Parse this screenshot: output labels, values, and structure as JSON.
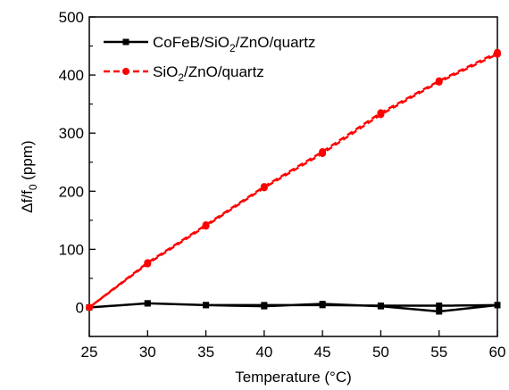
{
  "chart_data": {
    "type": "line",
    "xlabel": "Temperature (°C)",
    "ylabel": {
      "main": "Δf/f",
      "sub": "0",
      "rest": " (ppm)"
    },
    "xlim": [
      25,
      60
    ],
    "ylim": [
      -50,
      500
    ],
    "xticks": [
      25,
      30,
      35,
      40,
      45,
      50,
      55,
      60
    ],
    "yticks": [
      0,
      100,
      200,
      300,
      400,
      500
    ],
    "grid": false,
    "legend_position": "top-left",
    "series": [
      {
        "name": "CoFeB/SiO2/ZnO/quartz",
        "legend_parts": [
          [
            "CoFeB/SiO",
            ""
          ],
          [
            "2",
            "sub"
          ],
          [
            "/ZnO/quartz",
            ""
          ]
        ],
        "color": "#000000",
        "line_style": "solid",
        "marker": "square",
        "x": [
          25,
          30,
          35,
          40,
          45,
          50,
          55,
          60
        ],
        "y": [
          0,
          7,
          4,
          2,
          6,
          2,
          -7,
          4
        ],
        "return_x": [
          60,
          55,
          50,
          45,
          40,
          35,
          30
        ],
        "return_y": [
          4,
          3,
          3,
          4,
          4,
          4,
          7
        ]
      },
      {
        "name": "SiO2/ZnO/quartz",
        "legend_parts": [
          [
            "SiO",
            ""
          ],
          [
            "2",
            "sub"
          ],
          [
            "/ZnO/quartz",
            ""
          ]
        ],
        "color": "#ff0000",
        "line_style": "dashed",
        "marker": "circle",
        "x": [
          25,
          30,
          35,
          40,
          45,
          50,
          55,
          60
        ],
        "y": [
          0,
          75,
          140,
          206,
          265,
          332,
          388,
          436
        ],
        "return_x": [
          60,
          55,
          50,
          45,
          40,
          35,
          30,
          25
        ],
        "return_y": [
          439,
          390,
          335,
          268,
          208,
          142,
          77,
          0
        ]
      }
    ]
  }
}
